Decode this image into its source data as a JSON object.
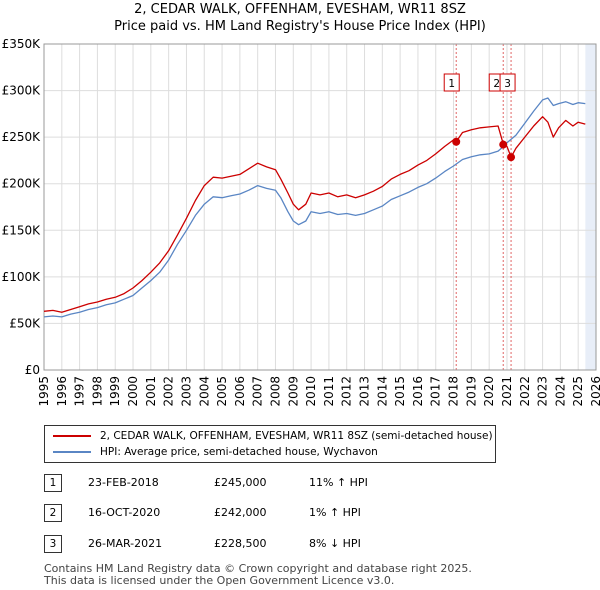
{
  "header": {
    "title": "2, CEDAR WALK, OFFENHAM, EVESHAM, WR11 8SZ",
    "subtitle": "Price paid vs. HM Land Registry's House Price Index (HPI)"
  },
  "colors": {
    "property": "#cc0000",
    "hpi": "#5a86c4",
    "shade": "#e8eef8",
    "marker_line": "#cc0000"
  },
  "chart_data": {
    "type": "line",
    "title": "2, CEDAR WALK, OFFENHAM, EVESHAM, WR11 8SZ",
    "subtitle": "Price paid vs. HM Land Registry's House Price Index (HPI)",
    "xlim": [
      1995,
      2026
    ],
    "ylim": [
      0,
      350000
    ],
    "x_ticks": [
      1995,
      1996,
      1997,
      1998,
      1999,
      2000,
      2001,
      2002,
      2003,
      2004,
      2005,
      2006,
      2007,
      2008,
      2009,
      2010,
      2011,
      2012,
      2013,
      2014,
      2015,
      2016,
      2017,
      2018,
      2019,
      2020,
      2021,
      2022,
      2023,
      2024,
      2025,
      2026
    ],
    "y_ticks": [
      0,
      50000,
      100000,
      150000,
      200000,
      250000,
      300000,
      350000
    ],
    "y_tick_labels": [
      "£0",
      "£50K",
      "£100K",
      "£150K",
      "£200K",
      "£250K",
      "£300K",
      "£350K"
    ],
    "grid": true,
    "shaded_region": {
      "from": 2025.4,
      "to": 2026
    },
    "series": [
      {
        "name": "2, CEDAR WALK, OFFENHAM, EVESHAM, WR11 8SZ (semi-detached house)",
        "color": "#cc0000",
        "points": [
          [
            1995.0,
            63000
          ],
          [
            1995.5,
            64000
          ],
          [
            1996.0,
            62000
          ],
          [
            1996.5,
            65000
          ],
          [
            1997.0,
            68000
          ],
          [
            1997.5,
            71000
          ],
          [
            1998.0,
            73000
          ],
          [
            1998.5,
            76000
          ],
          [
            1999.0,
            78000
          ],
          [
            1999.5,
            82000
          ],
          [
            2000.0,
            88000
          ],
          [
            2000.5,
            96000
          ],
          [
            2001.0,
            105000
          ],
          [
            2001.5,
            115000
          ],
          [
            2002.0,
            128000
          ],
          [
            2002.5,
            145000
          ],
          [
            2003.0,
            163000
          ],
          [
            2003.5,
            182000
          ],
          [
            2004.0,
            198000
          ],
          [
            2004.5,
            207000
          ],
          [
            2005.0,
            206000
          ],
          [
            2005.5,
            208000
          ],
          [
            2006.0,
            210000
          ],
          [
            2006.5,
            216000
          ],
          [
            2007.0,
            222000
          ],
          [
            2007.5,
            218000
          ],
          [
            2008.0,
            215000
          ],
          [
            2008.3,
            205000
          ],
          [
            2008.7,
            190000
          ],
          [
            2009.0,
            178000
          ],
          [
            2009.3,
            172000
          ],
          [
            2009.7,
            178000
          ],
          [
            2010.0,
            190000
          ],
          [
            2010.5,
            188000
          ],
          [
            2011.0,
            190000
          ],
          [
            2011.5,
            186000
          ],
          [
            2012.0,
            188000
          ],
          [
            2012.5,
            185000
          ],
          [
            2013.0,
            188000
          ],
          [
            2013.5,
            192000
          ],
          [
            2014.0,
            197000
          ],
          [
            2014.5,
            205000
          ],
          [
            2015.0,
            210000
          ],
          [
            2015.5,
            214000
          ],
          [
            2016.0,
            220000
          ],
          [
            2016.5,
            225000
          ],
          [
            2017.0,
            232000
          ],
          [
            2017.5,
            240000
          ],
          [
            2018.0,
            247000
          ],
          [
            2018.15,
            245000
          ],
          [
            2018.5,
            255000
          ],
          [
            2019.0,
            258000
          ],
          [
            2019.5,
            260000
          ],
          [
            2020.0,
            261000
          ],
          [
            2020.5,
            262000
          ],
          [
            2020.8,
            242000
          ],
          [
            2021.0,
            240000
          ],
          [
            2021.23,
            228500
          ],
          [
            2021.5,
            238000
          ],
          [
            2022.0,
            250000
          ],
          [
            2022.5,
            262000
          ],
          [
            2023.0,
            272000
          ],
          [
            2023.3,
            266000
          ],
          [
            2023.6,
            250000
          ],
          [
            2023.9,
            260000
          ],
          [
            2024.3,
            268000
          ],
          [
            2024.7,
            262000
          ],
          [
            2025.0,
            266000
          ],
          [
            2025.4,
            264000
          ]
        ]
      },
      {
        "name": "HPI: Average price, semi-detached house, Wychavon",
        "color": "#5a86c4",
        "points": [
          [
            1995.0,
            57000
          ],
          [
            1995.5,
            58000
          ],
          [
            1996.0,
            57000
          ],
          [
            1996.5,
            60000
          ],
          [
            1997.0,
            62000
          ],
          [
            1997.5,
            65000
          ],
          [
            1998.0,
            67000
          ],
          [
            1998.5,
            70000
          ],
          [
            1999.0,
            72000
          ],
          [
            1999.5,
            76000
          ],
          [
            2000.0,
            80000
          ],
          [
            2000.5,
            88000
          ],
          [
            2001.0,
            96000
          ],
          [
            2001.5,
            105000
          ],
          [
            2002.0,
            118000
          ],
          [
            2002.5,
            135000
          ],
          [
            2003.0,
            150000
          ],
          [
            2003.5,
            166000
          ],
          [
            2004.0,
            178000
          ],
          [
            2004.5,
            186000
          ],
          [
            2005.0,
            185000
          ],
          [
            2005.5,
            187000
          ],
          [
            2006.0,
            189000
          ],
          [
            2006.5,
            193000
          ],
          [
            2007.0,
            198000
          ],
          [
            2007.5,
            195000
          ],
          [
            2008.0,
            193000
          ],
          [
            2008.3,
            185000
          ],
          [
            2008.7,
            170000
          ],
          [
            2009.0,
            160000
          ],
          [
            2009.3,
            156000
          ],
          [
            2009.7,
            160000
          ],
          [
            2010.0,
            170000
          ],
          [
            2010.5,
            168000
          ],
          [
            2011.0,
            170000
          ],
          [
            2011.5,
            167000
          ],
          [
            2012.0,
            168000
          ],
          [
            2012.5,
            166000
          ],
          [
            2013.0,
            168000
          ],
          [
            2013.5,
            172000
          ],
          [
            2014.0,
            176000
          ],
          [
            2014.5,
            183000
          ],
          [
            2015.0,
            187000
          ],
          [
            2015.5,
            191000
          ],
          [
            2016.0,
            196000
          ],
          [
            2016.5,
            200000
          ],
          [
            2017.0,
            206000
          ],
          [
            2017.5,
            213000
          ],
          [
            2018.0,
            219000
          ],
          [
            2018.5,
            226000
          ],
          [
            2019.0,
            229000
          ],
          [
            2019.5,
            231000
          ],
          [
            2020.0,
            232000
          ],
          [
            2020.5,
            235000
          ],
          [
            2020.8,
            240000
          ],
          [
            2021.0,
            244000
          ],
          [
            2021.5,
            252000
          ],
          [
            2022.0,
            265000
          ],
          [
            2022.5,
            278000
          ],
          [
            2023.0,
            290000
          ],
          [
            2023.3,
            292000
          ],
          [
            2023.6,
            284000
          ],
          [
            2023.9,
            286000
          ],
          [
            2024.3,
            288000
          ],
          [
            2024.7,
            285000
          ],
          [
            2025.0,
            287000
          ],
          [
            2025.4,
            286000
          ]
        ]
      }
    ],
    "sales": [
      {
        "id": "1",
        "x": 2018.15,
        "y": 245000
      },
      {
        "id": "2",
        "x": 2020.79,
        "y": 242000
      },
      {
        "id": "3",
        "x": 2021.23,
        "y": 228500
      }
    ]
  },
  "legend": {
    "property_label": "2, CEDAR WALK, OFFENHAM, EVESHAM, WR11 8SZ (semi-detached house)",
    "hpi_label": "HPI: Average price, semi-detached house, Wychavon"
  },
  "sales_table": [
    {
      "id": "1",
      "date": "23-FEB-2018",
      "price": "£245,000",
      "hpi": "11% ↑ HPI"
    },
    {
      "id": "2",
      "date": "16-OCT-2020",
      "price": "£242,000",
      "hpi": "1% ↑ HPI"
    },
    {
      "id": "3",
      "date": "26-MAR-2021",
      "price": "£228,500",
      "hpi": "8% ↓ HPI"
    }
  ],
  "footer": {
    "line1": "Contains HM Land Registry data © Crown copyright and database right 2025.",
    "line2": "This data is licensed under the Open Government Licence v3.0."
  }
}
